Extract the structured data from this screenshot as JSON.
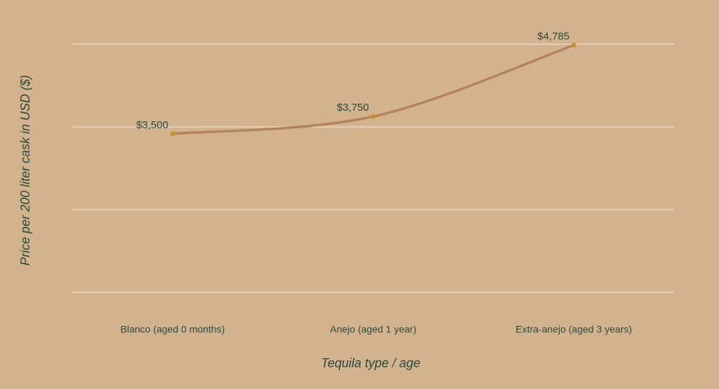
{
  "chart_data": {
    "type": "line",
    "x_label": "Tequila type / age",
    "y_label": "Price per 200 liter cask in USD ($)",
    "categories": [
      "Blanco (aged 0 months)",
      "Anejo (aged 1 year)",
      "Extra-anejo (aged 3 years)"
    ],
    "values": [
      3500,
      3750,
      4785
    ],
    "value_labels": [
      "$3,500",
      "$3,750",
      "$4,785"
    ],
    "line_color": "#b3835e",
    "marker_color": "#c8922a",
    "ylim": [
      1200,
      4800
    ],
    "ygrid": [
      1200,
      2400,
      3600,
      4800
    ]
  }
}
